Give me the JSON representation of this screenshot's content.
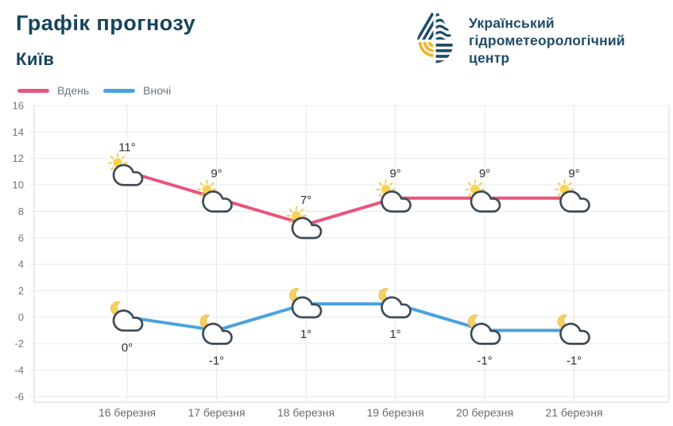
{
  "header": {
    "title": "Графік прогнозу",
    "subtitle": "Київ"
  },
  "logo": {
    "org_name": "Український гідрометеорологічний центр",
    "lines": [
      "Український",
      "гідрометеорологічний",
      "центр"
    ],
    "colors": {
      "navy": "#1e4b68",
      "gold": "#f0b429"
    }
  },
  "legend": [
    {
      "label": "Вдень",
      "color": "#e8557a"
    },
    {
      "label": "Вночі",
      "color": "#4aa3dc"
    }
  ],
  "chart_data": {
    "type": "line",
    "categories": [
      "16 березня",
      "17 березня",
      "18 березня",
      "19 березня",
      "20 березня",
      "21 березня"
    ],
    "series": [
      {
        "name": "Вдень",
        "color": "#e8557a",
        "icon": "sun-cloud",
        "values": [
          11,
          9,
          7,
          9,
          9,
          9
        ],
        "labels": [
          "11°",
          "9°",
          "7°",
          "9°",
          "9°",
          "9°"
        ],
        "label_position": "above"
      },
      {
        "name": "Вночі",
        "color": "#4aa3dc",
        "icon": "moon-cloud",
        "values": [
          0,
          -1,
          1,
          1,
          -1,
          -1
        ],
        "labels": [
          "0°",
          "-1°",
          "1°",
          "1°",
          "-1°",
          "-1°"
        ],
        "label_position": "below"
      }
    ],
    "ylim": [
      -6,
      16
    ],
    "ytick_step": 2,
    "yticks": [
      16,
      14,
      12,
      10,
      8,
      6,
      4,
      2,
      0,
      -2,
      -4,
      -6
    ],
    "grid": true,
    "legend_position": "top-left",
    "styles": {
      "grid_color": "#e8e8e8",
      "axis_color": "#d6d6d6",
      "ytick_text_color": "#757575",
      "xtick_text_color": "#6b6b6b",
      "point_label_color": "#2e2e2e",
      "cloud_stroke": "#3d4b57",
      "sun_fill": "#f9d34f",
      "sun_ray": "#f6c83d",
      "moon_fill": "#f5d163",
      "moon_stroke": "#eec052"
    }
  }
}
